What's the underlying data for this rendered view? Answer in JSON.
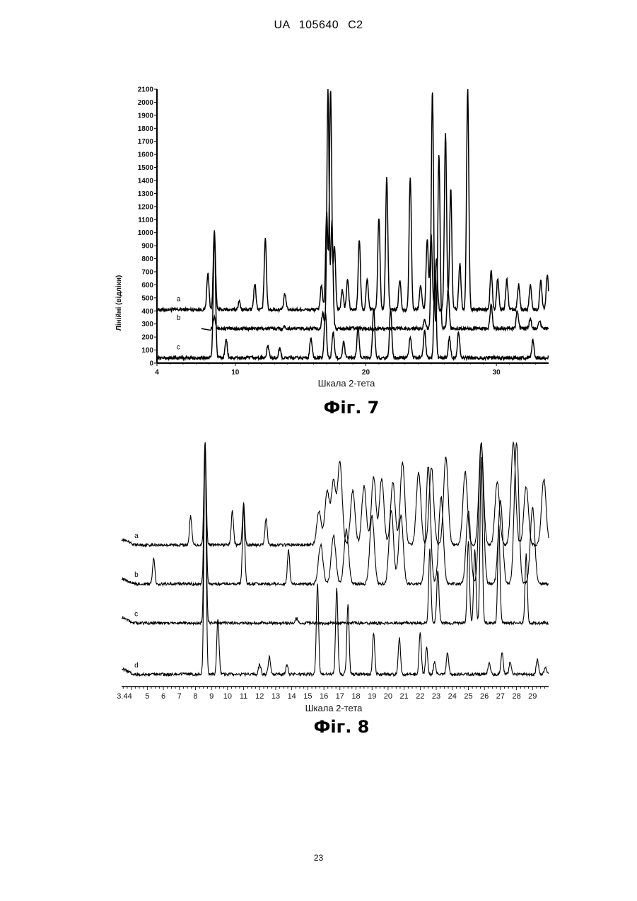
{
  "header": {
    "text": "UA   105640   C2"
  },
  "page_number": "23",
  "chart_data": [
    {
      "type": "line",
      "title": "Фіг. 7",
      "xlabel": "Шкала 2-тета",
      "ylabel": "Лінійні (відліки)",
      "xlim": [
        4,
        34
      ],
      "ylim": [
        0,
        2100
      ],
      "xticks": [
        4,
        10,
        20,
        30
      ],
      "yticks": [
        0,
        100,
        200,
        300,
        400,
        500,
        600,
        700,
        800,
        900,
        1000,
        1100,
        1200,
        1300,
        1400,
        1500,
        1600,
        1700,
        1800,
        1900,
        2000,
        2100
      ],
      "grid": false,
      "series": [
        {
          "name": "a",
          "baseline": 410,
          "peaks": [
            [
              7.9,
              690
            ],
            [
              8.4,
              1020
            ],
            [
              10.3,
              470
            ],
            [
              11.5,
              610
            ],
            [
              12.3,
              960
            ],
            [
              13.8,
              530
            ],
            [
              16.6,
              600
            ],
            [
              17.0,
              1150
            ],
            [
              17.3,
              2100
            ],
            [
              17.6,
              900
            ],
            [
              18.2,
              560
            ],
            [
              18.6,
              640
            ],
            [
              19.5,
              950
            ],
            [
              20.1,
              640
            ],
            [
              21.0,
              1120
            ],
            [
              21.6,
              1430
            ],
            [
              22.6,
              640
            ],
            [
              23.4,
              1430
            ],
            [
              24.2,
              600
            ],
            [
              24.7,
              950
            ],
            [
              25.0,
              1000
            ],
            [
              25.4,
              800
            ],
            [
              26.1,
              1760
            ],
            [
              26.5,
              1340
            ],
            [
              27.2,
              760
            ],
            [
              27.8,
              2100
            ],
            [
              29.6,
              720
            ],
            [
              30.1,
              650
            ],
            [
              30.8,
              640
            ],
            [
              31.7,
              600
            ],
            [
              32.6,
              600
            ],
            [
              33.4,
              640
            ],
            [
              33.9,
              680
            ]
          ]
        },
        {
          "name": "b",
          "baseline": 265,
          "peaks": [
            [
              8.4,
              360
            ],
            [
              13.8,
              280
            ],
            [
              16.7,
              380
            ],
            [
              17.1,
              2100
            ],
            [
              17.4,
              1080
            ],
            [
              24.5,
              330
            ],
            [
              25.1,
              2100
            ],
            [
              25.6,
              1600
            ],
            [
              26.3,
              560
            ],
            [
              29.6,
              450
            ],
            [
              31.6,
              400
            ],
            [
              32.6,
              340
            ],
            [
              33.3,
              330
            ]
          ]
        },
        {
          "name": "c",
          "baseline": 40,
          "peaks": [
            [
              8.4,
              1000
            ],
            [
              9.3,
              180
            ],
            [
              12.5,
              130
            ],
            [
              13.4,
              110
            ],
            [
              15.8,
              200
            ],
            [
              16.9,
              400
            ],
            [
              17.5,
              230
            ],
            [
              18.3,
              160
            ],
            [
              19.4,
              280
            ],
            [
              20.6,
              420
            ],
            [
              21.9,
              420
            ],
            [
              23.4,
              200
            ],
            [
              24.5,
              250
            ],
            [
              25.3,
              720
            ],
            [
              26.4,
              200
            ],
            [
              27.1,
              240
            ],
            [
              32.8,
              180
            ]
          ]
        }
      ]
    },
    {
      "type": "line",
      "title": "Фіг. 8",
      "xlabel": "Шкала 2-тета",
      "xlim": [
        3.4,
        30
      ],
      "xticks": [
        "3.44",
        "5",
        "6",
        "7",
        "8",
        "9",
        "10",
        "11",
        "12",
        "13",
        "14",
        "15",
        "16",
        "17",
        "18",
        "19",
        "20",
        "21",
        "22",
        "23",
        "24",
        "25",
        "26",
        "27",
        "28",
        "29"
      ],
      "ylim": [
        0,
        100
      ],
      "grid": false,
      "series": [
        {
          "name": "a",
          "baseline": 58,
          "peaks": [
            [
              7.7,
              70
            ],
            [
              8.6,
              100
            ],
            [
              10.3,
              72
            ],
            [
              11.0,
              75
            ],
            [
              12.4,
              69
            ],
            [
              15.7,
              72
            ],
            [
              16.2,
              80
            ],
            [
              16.6,
              84
            ],
            [
              17.0,
              92
            ],
            [
              17.8,
              80
            ],
            [
              18.5,
              82
            ],
            [
              19.1,
              86
            ],
            [
              19.6,
              85
            ],
            [
              20.3,
              84
            ],
            [
              20.9,
              92
            ],
            [
              21.9,
              88
            ],
            [
              22.7,
              90
            ],
            [
              23.6,
              94
            ],
            [
              24.8,
              88
            ],
            [
              25.8,
              100
            ],
            [
              26.8,
              84
            ],
            [
              27.8,
              100
            ],
            [
              28.6,
              82
            ],
            [
              29.7,
              85
            ]
          ]
        },
        {
          "name": "b",
          "baseline": 42,
          "peaks": [
            [
              5.4,
              53
            ],
            [
              8.6,
              100
            ],
            [
              11.0,
              73
            ],
            [
              13.8,
              56
            ],
            [
              15.8,
              58
            ],
            [
              16.6,
              62
            ],
            [
              17.4,
              64
            ],
            [
              19.0,
              70
            ],
            [
              20.2,
              72
            ],
            [
              20.8,
              70
            ],
            [
              22.5,
              90
            ],
            [
              23.3,
              78
            ],
            [
              25.0,
              72
            ],
            [
              25.8,
              100
            ],
            [
              27.0,
              76
            ],
            [
              28.0,
              100
            ],
            [
              29.0,
              73
            ]
          ]
        },
        {
          "name": "c",
          "baseline": 26,
          "peaks": [
            [
              8.6,
              100
            ],
            [
              14.3,
              28
            ],
            [
              22.6,
              56
            ],
            [
              23.1,
              48
            ],
            [
              25.0,
              60
            ],
            [
              25.4,
              56
            ],
            [
              25.8,
              94
            ],
            [
              26.9,
              66
            ],
            [
              28.6,
              54
            ]
          ]
        },
        {
          "name": "d",
          "baseline": 5,
          "peaks": [
            [
              8.6,
              100
            ],
            [
              9.4,
              28
            ],
            [
              12.0,
              9
            ],
            [
              12.6,
              12
            ],
            [
              13.7,
              9
            ],
            [
              15.6,
              42
            ],
            [
              16.8,
              40
            ],
            [
              17.5,
              34
            ],
            [
              19.1,
              22
            ],
            [
              20.7,
              20
            ],
            [
              22.0,
              22
            ],
            [
              22.4,
              16
            ],
            [
              22.9,
              10
            ],
            [
              23.7,
              14
            ],
            [
              26.3,
              10
            ],
            [
              27.1,
              14
            ],
            [
              27.6,
              10
            ],
            [
              29.3,
              11
            ],
            [
              29.8,
              8
            ]
          ]
        }
      ]
    }
  ]
}
